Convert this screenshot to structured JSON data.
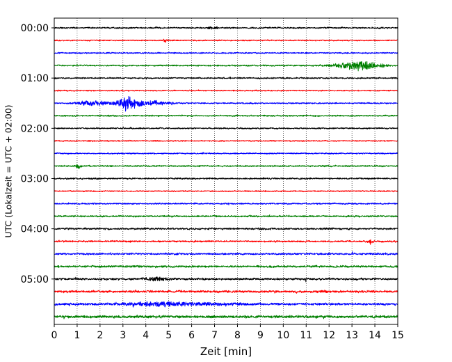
{
  "chart_data": {
    "type": "line",
    "subtype": "helicorder-seismogram",
    "title": "",
    "xlabel": "Zeit  [min]",
    "ylabel": "UTC (Lokalzeit = UTC + 02:00)",
    "xlim": [
      0,
      15
    ],
    "x_ticks": [
      "0",
      "1",
      "2",
      "3",
      "4",
      "5",
      "6",
      "7",
      "8",
      "9",
      "10",
      "11",
      "12",
      "13",
      "14",
      "15"
    ],
    "vertical_grid": true,
    "grid_style": "dotted",
    "trace_interval_minutes": 15,
    "trace_count": 24,
    "trace_colors": [
      "#000000",
      "#ff0000",
      "#0000ff",
      "#008000"
    ],
    "y_tick_labels": [
      {
        "label": "00:00",
        "trace_index": 0
      },
      {
        "label": "01:00",
        "trace_index": 4
      },
      {
        "label": "02:00",
        "trace_index": 8
      },
      {
        "label": "03:00",
        "trace_index": 12
      },
      {
        "label": "04:00",
        "trace_index": 16
      },
      {
        "label": "05:00",
        "trace_index": 20
      }
    ],
    "series": [
      {
        "trace_index": 0,
        "start_time": "00:00",
        "color": "#000000",
        "noise_amplitude": 0.11,
        "events": [
          {
            "center_min": 6.9,
            "width_min": 0.15,
            "peak_amplitude": 0.16
          }
        ]
      },
      {
        "trace_index": 1,
        "start_time": "00:15",
        "color": "#ff0000",
        "noise_amplitude": 0.09,
        "events": [
          {
            "center_min": 4.85,
            "width_min": 0.05,
            "peak_amplitude": 0.2
          }
        ]
      },
      {
        "trace_index": 2,
        "start_time": "00:30",
        "color": "#0000ff",
        "noise_amplitude": 0.1,
        "events": []
      },
      {
        "trace_index": 3,
        "start_time": "00:45",
        "color": "#008000",
        "noise_amplitude": 0.11,
        "events": [
          {
            "center_min": 12.6,
            "width_min": 0.4,
            "peak_amplitude": 0.22
          },
          {
            "center_min": 13.3,
            "width_min": 0.3,
            "peak_amplitude": 0.55
          },
          {
            "center_min": 14.0,
            "width_min": 0.35,
            "peak_amplitude": 0.3
          }
        ]
      },
      {
        "trace_index": 4,
        "start_time": "01:00",
        "color": "#000000",
        "noise_amplitude": 0.11,
        "events": []
      },
      {
        "trace_index": 5,
        "start_time": "01:15",
        "color": "#ff0000",
        "noise_amplitude": 0.09,
        "events": []
      },
      {
        "trace_index": 6,
        "start_time": "01:30",
        "color": "#0000ff",
        "noise_amplitude": 0.1,
        "events": [
          {
            "center_min": 1.7,
            "width_min": 0.45,
            "peak_amplitude": 0.28
          },
          {
            "center_min": 3.2,
            "width_min": 0.35,
            "peak_amplitude": 0.78
          },
          {
            "center_min": 4.4,
            "width_min": 0.5,
            "peak_amplitude": 0.22
          }
        ]
      },
      {
        "trace_index": 7,
        "start_time": "01:45",
        "color": "#008000",
        "noise_amplitude": 0.11,
        "events": []
      },
      {
        "trace_index": 8,
        "start_time": "02:00",
        "color": "#000000",
        "noise_amplitude": 0.11,
        "events": []
      },
      {
        "trace_index": 9,
        "start_time": "02:15",
        "color": "#ff0000",
        "noise_amplitude": 0.09,
        "events": []
      },
      {
        "trace_index": 10,
        "start_time": "02:30",
        "color": "#0000ff",
        "noise_amplitude": 0.1,
        "events": []
      },
      {
        "trace_index": 11,
        "start_time": "02:45",
        "color": "#008000",
        "noise_amplitude": 0.11,
        "events": [
          {
            "center_min": 1.05,
            "width_min": 0.1,
            "peak_amplitude": 0.22
          }
        ]
      },
      {
        "trace_index": 12,
        "start_time": "03:00",
        "color": "#000000",
        "noise_amplitude": 0.12,
        "events": []
      },
      {
        "trace_index": 13,
        "start_time": "03:15",
        "color": "#ff0000",
        "noise_amplitude": 0.1,
        "events": []
      },
      {
        "trace_index": 14,
        "start_time": "03:30",
        "color": "#0000ff",
        "noise_amplitude": 0.11,
        "events": []
      },
      {
        "trace_index": 15,
        "start_time": "03:45",
        "color": "#008000",
        "noise_amplitude": 0.13,
        "events": []
      },
      {
        "trace_index": 16,
        "start_time": "04:00",
        "color": "#000000",
        "noise_amplitude": 0.14,
        "events": []
      },
      {
        "trace_index": 17,
        "start_time": "04:15",
        "color": "#ff0000",
        "noise_amplitude": 0.13,
        "events": [
          {
            "center_min": 13.8,
            "width_min": 0.1,
            "peak_amplitude": 0.22
          }
        ]
      },
      {
        "trace_index": 18,
        "start_time": "04:30",
        "color": "#0000ff",
        "noise_amplitude": 0.15,
        "events": []
      },
      {
        "trace_index": 19,
        "start_time": "04:45",
        "color": "#008000",
        "noise_amplitude": 0.16,
        "events": []
      },
      {
        "trace_index": 20,
        "start_time": "05:00",
        "color": "#000000",
        "noise_amplitude": 0.16,
        "events": [
          {
            "center_min": 4.4,
            "width_min": 0.3,
            "peak_amplitude": 0.22
          }
        ]
      },
      {
        "trace_index": 21,
        "start_time": "05:15",
        "color": "#ff0000",
        "noise_amplitude": 0.17,
        "events": []
      },
      {
        "trace_index": 22,
        "start_time": "05:30",
        "color": "#0000ff",
        "noise_amplitude": 0.18,
        "events": [
          {
            "center_min": 5.0,
            "width_min": 1.5,
            "peak_amplitude": 0.18
          }
        ]
      },
      {
        "trace_index": 23,
        "start_time": "05:45",
        "color": "#008000",
        "noise_amplitude": 0.2,
        "events": []
      }
    ]
  }
}
